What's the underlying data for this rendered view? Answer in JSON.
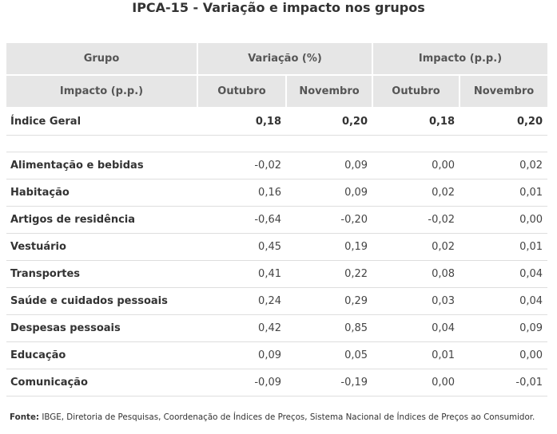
{
  "title": "IPCA-15 - Variação e impacto nos grupos",
  "table": {
    "header1": {
      "col0": "Grupo",
      "col1": "Variação (%)",
      "col2": "Impacto (p.p.)"
    },
    "header2": [
      "Impacto (p.p.)",
      "Outubro",
      "Novembro",
      "Outubro",
      "Novembro"
    ],
    "total_row": {
      "label": "Índice Geral",
      "values": [
        "0,18",
        "0,20",
        "0,18",
        "0,20"
      ]
    },
    "rows": [
      {
        "label": "Alimentação e bebidas",
        "values": [
          "-0,02",
          "0,09",
          "0,00",
          "0,02"
        ]
      },
      {
        "label": "Habitação",
        "values": [
          "0,16",
          "0,09",
          "0,02",
          "0,01"
        ]
      },
      {
        "label": "Artigos de residência",
        "values": [
          "-0,64",
          "-0,20",
          "-0,02",
          "0,00"
        ]
      },
      {
        "label": "Vestuário",
        "values": [
          "0,45",
          "0,19",
          "0,02",
          "0,01"
        ]
      },
      {
        "label": "Transportes",
        "values": [
          "0,41",
          "0,22",
          "0,08",
          "0,04"
        ]
      },
      {
        "label": "Saúde e cuidados pessoais",
        "values": [
          "0,24",
          "0,29",
          "0,03",
          "0,04"
        ]
      },
      {
        "label": "Despesas pessoais",
        "values": [
          "0,42",
          "0,85",
          "0,04",
          "0,09"
        ]
      },
      {
        "label": "Educação",
        "values": [
          "0,09",
          "0,05",
          "0,01",
          "0,00"
        ]
      },
      {
        "label": "Comunicação",
        "values": [
          "-0,09",
          "-0,19",
          "0,00",
          "-0,01"
        ]
      }
    ]
  },
  "source": {
    "label": "Fonte:",
    "text": " IBGE, Diretoria de Pesquisas, Coordenação de Índices de Preços, Sistema Nacional de Índices de Preços ao Consumidor."
  },
  "colors": {
    "header_bg": "#e6e6e6",
    "row_border": "#dedede",
    "text": "#333333"
  }
}
